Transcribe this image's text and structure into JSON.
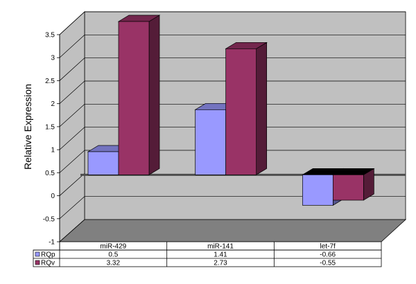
{
  "chart_data": {
    "type": "bar",
    "subtype": "3d-clustered-column-with-data-table",
    "categories": [
      "miR-429",
      "miR-141",
      "let-7f"
    ],
    "series": [
      {
        "name": "RQp",
        "values": [
          0.5,
          1.41,
          -0.66
        ],
        "color": "#9999ff"
      },
      {
        "name": "RQv",
        "values": [
          3.32,
          2.73,
          -0.55
        ],
        "color": "#993366"
      }
    ],
    "title": "",
    "xlabel": "",
    "ylabel": "Relative Expression",
    "ylim": [
      -1,
      3.5
    ],
    "yticks": [
      -1,
      -0.5,
      0,
      0.5,
      1,
      1.5,
      2,
      2.5,
      3,
      3.5
    ],
    "grid": true,
    "legend": "data-table-left",
    "wall_color": "#c0c0c0",
    "floor_color": "#808080"
  }
}
